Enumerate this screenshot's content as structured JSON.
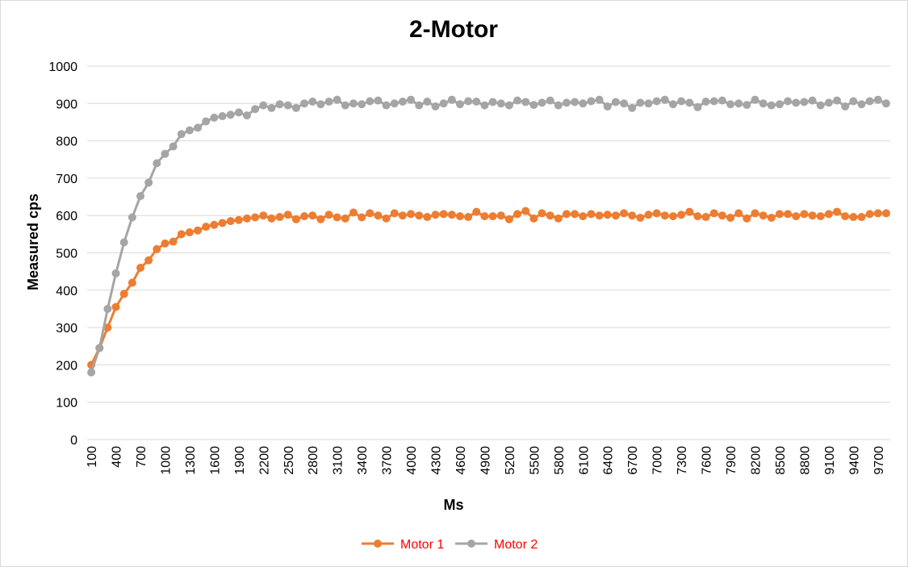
{
  "chart_data": {
    "type": "line",
    "title": "2-Motor",
    "xlabel": "Ms",
    "ylabel": "Measured cps",
    "ylim": [
      0,
      1000
    ],
    "y_ticks": [
      0,
      100,
      200,
      300,
      400,
      500,
      600,
      700,
      800,
      900,
      1000
    ],
    "x_tick_labels": [
      "100",
      "400",
      "700",
      "1000",
      "1300",
      "1600",
      "1900",
      "2200",
      "2500",
      "2800",
      "3100",
      "3400",
      "3700",
      "4000",
      "4300",
      "4600",
      "4900",
      "5200",
      "5500",
      "5800",
      "6100",
      "6400",
      "6700",
      "7000",
      "7300",
      "7600",
      "7900",
      "8200",
      "8500",
      "8800",
      "9100",
      "9400",
      "9700"
    ],
    "grid": true,
    "legend_position": "bottom",
    "legend_text_color": "#ff0000",
    "x": [
      100,
      200,
      300,
      400,
      500,
      600,
      700,
      800,
      900,
      1000,
      1100,
      1200,
      1300,
      1400,
      1500,
      1600,
      1700,
      1800,
      1900,
      2000,
      2100,
      2200,
      2300,
      2400,
      2500,
      2600,
      2700,
      2800,
      2900,
      3000,
      3100,
      3200,
      3300,
      3400,
      3500,
      3600,
      3700,
      3800,
      3900,
      4000,
      4100,
      4200,
      4300,
      4400,
      4500,
      4600,
      4700,
      4800,
      4900,
      5000,
      5100,
      5200,
      5300,
      5400,
      5500,
      5600,
      5700,
      5800,
      5900,
      6000,
      6100,
      6200,
      6300,
      6400,
      6500,
      6600,
      6700,
      6800,
      6900,
      7000,
      7100,
      7200,
      7300,
      7400,
      7500,
      7600,
      7700,
      7800,
      7900,
      8000,
      8100,
      8200,
      8300,
      8400,
      8500,
      8600,
      8700,
      8800,
      8900,
      9000,
      9100,
      9200,
      9300,
      9400,
      9500,
      9600,
      9700,
      9800
    ],
    "series": [
      {
        "name": "Motor 1",
        "color": "#ed7d31",
        "values": [
          200,
          245,
          300,
          355,
          390,
          420,
          460,
          480,
          510,
          525,
          530,
          550,
          555,
          560,
          570,
          575,
          580,
          585,
          588,
          592,
          595,
          600,
          592,
          596,
          602,
          590,
          598,
          600,
          590,
          602,
          595,
          592,
          608,
          595,
          606,
          600,
          592,
          606,
          600,
          604,
          600,
          596,
          602,
          604,
          602,
          598,
          596,
          610,
          598,
          598,
          600,
          590,
          604,
          612,
          592,
          606,
          600,
          592,
          604,
          604,
          598,
          604,
          600,
          602,
          600,
          606,
          600,
          594,
          602,
          606,
          600,
          598,
          602,
          610,
          598,
          596,
          606,
          600,
          594,
          606,
          592,
          606,
          600,
          594,
          604,
          604,
          598,
          604,
          600,
          598,
          604,
          610,
          598,
          596,
          596,
          604,
          606,
          606
        ]
      },
      {
        "name": "Motor 2",
        "color": "#a5a5a5",
        "values": [
          180,
          245,
          350,
          445,
          528,
          595,
          652,
          688,
          740,
          765,
          785,
          818,
          828,
          835,
          852,
          862,
          866,
          870,
          876,
          868,
          885,
          895,
          888,
          898,
          895,
          888,
          900,
          905,
          898,
          905,
          910,
          895,
          900,
          898,
          906,
          908,
          895,
          900,
          905,
          910,
          895,
          905,
          892,
          900,
          910,
          898,
          906,
          905,
          895,
          904,
          900,
          895,
          908,
          904,
          896,
          902,
          908,
          895,
          902,
          904,
          900,
          906,
          910,
          892,
          904,
          900,
          888,
          902,
          900,
          906,
          910,
          898,
          906,
          902,
          890,
          905,
          906,
          908,
          898,
          900,
          896,
          910,
          900,
          895,
          898,
          906,
          902,
          904,
          908,
          895,
          902,
          908,
          892,
          906,
          898,
          906,
          910,
          900
        ]
      }
    ]
  }
}
